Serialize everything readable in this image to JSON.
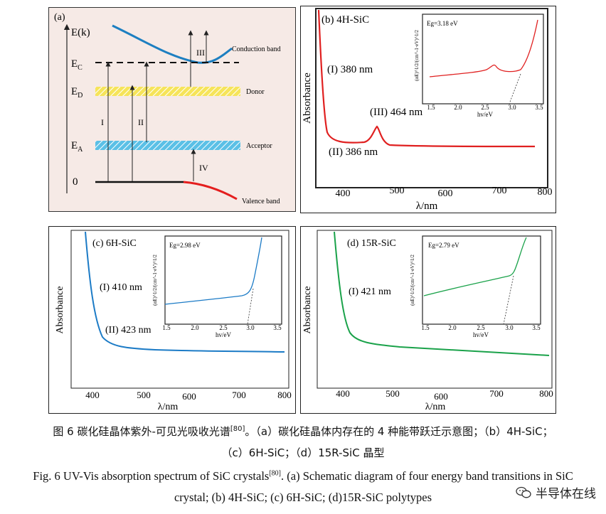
{
  "panel_a": {
    "label": "(a)",
    "e_axis": "E(k)",
    "levels": {
      "ec": "E",
      "ec_sub": "C",
      "ed": "E",
      "ed_sub": "D",
      "ea": "E",
      "ea_sub": "A",
      "zero": "0"
    },
    "band_labels": {
      "conduction": "Conduction band",
      "donor": "Donor",
      "acceptor": "Acceptor",
      "valence": "Valence band"
    },
    "transitions": [
      "I",
      "II",
      "III",
      "IV"
    ],
    "colors": {
      "conduction": "#1d7fc1",
      "valence": "#e41e1e",
      "donor": "#f2e34a",
      "acceptor": "#5bc0e6",
      "background": "#f6eae6"
    }
  },
  "panel_b": {
    "label": "(b) 4H-SiC",
    "peaks": [
      "(I) 380 nm",
      "(III) 464 nm",
      "(II) 386 nm"
    ],
    "inset_eg": "Eg=3.18 eV",
    "color": "#e02020"
  },
  "panel_c": {
    "label": "(c) 6H-SiC",
    "peaks": [
      "(I) 410 nm",
      "(II) 423 nm"
    ],
    "inset_eg": "Eg=2.98 eV",
    "color": "#1c7bc6"
  },
  "panel_d": {
    "label": "(d) 15R-SiC",
    "peaks": [
      "(I) 421 nm"
    ],
    "inset_eg": "Eg=2.79 eV",
    "color": "#1aa24a"
  },
  "axes": {
    "ylabel": "Absorbance",
    "xlabel": "λ/nm",
    "x_ticks": [
      "400",
      "500",
      "600",
      "700",
      "800"
    ],
    "inset_xlabel": "hv/eV",
    "inset_ylabel": "(αE)^1/2/(cm^-1·eV)^1/2",
    "inset_x_ticks": [
      "1.5",
      "2.0",
      "2.5",
      "3.0",
      "3.5"
    ]
  },
  "caption": {
    "zh_line1": "图 6 碳化硅晶体紫外-可见光吸收光谱",
    "zh_ref": "[80]",
    "zh_line1_rest": "。（a）碳化硅晶体内存在的 4 种能带跃迁示意图；（b）4H-SiC；",
    "zh_line2": "（c）6H-SiC；（d）15R-SiC 晶型",
    "en_line1": "Fig. 6 UV-Vis absorption spectrum of SiC crystals",
    "en_ref": "[80]",
    "en_line1_rest": ". (a) Schematic diagram of four energy band transitions in SiC",
    "en_line2": "crystal; (b) 4H-SiC; (c) 6H-SiC; (d)15R-SiC polytypes"
  },
  "watermark": "半导体在线",
  "chart_data": [
    {
      "type": "line",
      "panel": "(b) 4H-SiC",
      "xlabel": "λ/nm",
      "ylabel": "Absorbance",
      "xlim": [
        350,
        800
      ],
      "series": [
        {
          "x": [
            362,
            368,
            372,
            376,
            380,
            385,
            390,
            400,
            420,
            440,
            452,
            458,
            462,
            466,
            472,
            480,
            500,
            550,
            600,
            700,
            780
          ],
          "values": [
            1.0,
            0.75,
            0.45,
            0.2,
            0.07,
            0.03,
            0.03,
            0.02,
            0.01,
            0.02,
            0.05,
            0.1,
            0.12,
            0.08,
            0.03,
            0.01,
            0.0,
            0.0,
            0.0,
            0.0,
            0.0
          ]
        }
      ],
      "annotations": [
        "(I) 380 nm",
        "(III) 464 nm",
        "(II) 386 nm"
      ]
    },
    {
      "type": "line",
      "panel": "(b) 4H-SiC inset",
      "xlabel": "hv/eV",
      "xlim": [
        1.5,
        3.5
      ],
      "series": [
        {
          "x": [
            1.5,
            2.0,
            2.4,
            2.55,
            2.65,
            2.75,
            3.0,
            3.2,
            3.4,
            3.5
          ],
          "values": [
            0.2,
            0.23,
            0.27,
            0.32,
            0.38,
            0.32,
            0.33,
            0.4,
            0.75,
            1.0
          ]
        }
      ],
      "annotations": [
        "Eg=3.18 eV"
      ]
    },
    {
      "type": "line",
      "panel": "(c) 6H-SiC",
      "xlabel": "λ/nm",
      "ylabel": "Absorbance",
      "xlim": [
        350,
        800
      ],
      "series": [
        {
          "x": [
            380,
            390,
            400,
            410,
            423,
            440,
            460,
            500,
            600,
            700,
            800
          ],
          "values": [
            1.0,
            0.8,
            0.52,
            0.3,
            0.17,
            0.12,
            0.1,
            0.09,
            0.08,
            0.07,
            0.06
          ]
        }
      ],
      "annotations": [
        "(I) 410 nm",
        "(II) 423 nm"
      ]
    },
    {
      "type": "line",
      "panel": "(c) 6H-SiC inset",
      "xlabel": "hv/eV",
      "xlim": [
        1.5,
        3.5
      ],
      "series": [
        {
          "x": [
            1.5,
            2.0,
            2.5,
            2.8,
            2.95,
            3.05,
            3.12,
            3.2
          ],
          "values": [
            0.2,
            0.24,
            0.28,
            0.32,
            0.4,
            0.65,
            0.9,
            1.0
          ]
        }
      ],
      "annotations": [
        "Eg=2.98 eV"
      ]
    },
    {
      "type": "line",
      "panel": "(d) 15R-SiC",
      "xlabel": "λ/nm",
      "ylabel": "Absorbance",
      "xlim": [
        350,
        800
      ],
      "series": [
        {
          "x": [
            375,
            390,
            400,
            410,
            421,
            430,
            450,
            500,
            600,
            700,
            800
          ],
          "values": [
            1.0,
            0.85,
            0.6,
            0.35,
            0.17,
            0.12,
            0.09,
            0.08,
            0.06,
            0.04,
            0.02
          ]
        }
      ],
      "annotations": [
        "(I) 421 nm"
      ]
    },
    {
      "type": "line",
      "panel": "(d) 15R-SiC inset",
      "xlabel": "hv/eV",
      "xlim": [
        1.5,
        3.5
      ],
      "series": [
        {
          "x": [
            1.5,
            2.0,
            2.5,
            2.9,
            3.05,
            3.1,
            3.2,
            3.25
          ],
          "values": [
            0.3,
            0.4,
            0.5,
            0.58,
            0.62,
            0.8,
            0.97,
            1.0
          ]
        }
      ],
      "annotations": [
        "Eg=2.79 eV"
      ]
    }
  ]
}
